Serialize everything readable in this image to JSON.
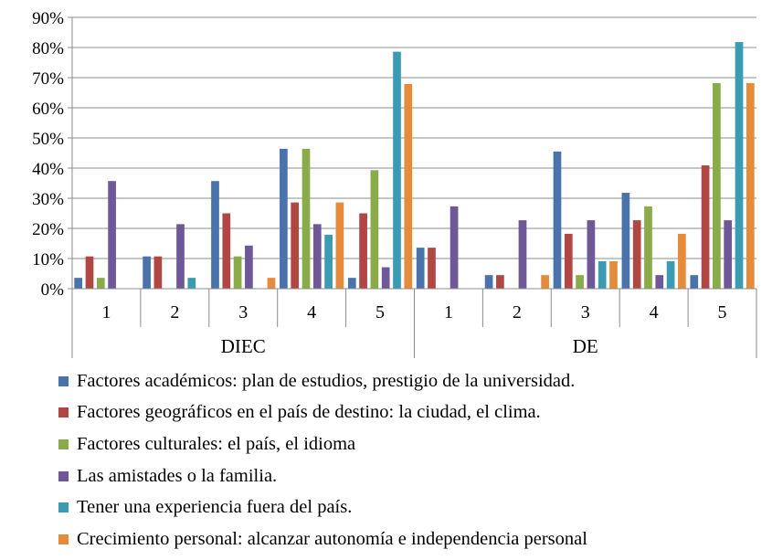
{
  "chart_data": {
    "type": "bar",
    "groups": [
      "DIEC",
      "DE"
    ],
    "categories": [
      "1",
      "2",
      "3",
      "4",
      "5"
    ],
    "ylim": [
      0,
      90
    ],
    "y_ticks": [
      "0%",
      "10%",
      "20%",
      "30%",
      "40%",
      "50%",
      "60%",
      "70%",
      "80%",
      "90%"
    ],
    "y_tick_values": [
      0,
      10,
      20,
      30,
      40,
      50,
      60,
      70,
      80,
      90
    ],
    "grid": true,
    "legend_position": "bottom",
    "series": [
      {
        "name": "Factores académicos: plan de estudios, prestigio de la universidad.",
        "color": "#4a72ab",
        "values": [
          [
            3.6,
            10.7,
            35.7,
            46.4,
            3.6
          ],
          [
            13.6,
            4.5,
            45.5,
            31.8,
            4.5
          ]
        ]
      },
      {
        "name": "Factores geográficos en el país de destino: la ciudad, el clima.",
        "color": "#b04745",
        "values": [
          [
            10.7,
            10.7,
            25.0,
            28.6,
            25.0
          ],
          [
            13.6,
            4.5,
            18.2,
            22.7,
            40.9
          ]
        ]
      },
      {
        "name": "Factores culturales: el país, el idioma",
        "color": "#8aab4a",
        "values": [
          [
            3.6,
            0,
            10.7,
            46.4,
            39.3
          ],
          [
            0,
            0,
            4.5,
            27.3,
            68.2
          ]
        ]
      },
      {
        "name": "Las amistades o la familia.",
        "color": "#6e5897",
        "values": [
          [
            35.7,
            21.4,
            14.3,
            21.4,
            7.1
          ],
          [
            27.3,
            22.7,
            22.7,
            4.5,
            22.7
          ]
        ]
      },
      {
        "name": "Tener una experiencia fuera del país.",
        "color": "#3b9bb2",
        "values": [
          [
            0,
            3.6,
            0,
            17.9,
            78.6
          ],
          [
            0,
            0,
            9.1,
            9.1,
            81.8
          ]
        ]
      },
      {
        "name": "Crecimiento personal: alcanzar autonomía e independencia personal",
        "color": "#e58b3c",
        "values": [
          [
            0,
            0,
            3.6,
            28.6,
            67.9
          ],
          [
            0,
            4.5,
            9.1,
            18.2,
            68.2
          ]
        ]
      }
    ]
  }
}
